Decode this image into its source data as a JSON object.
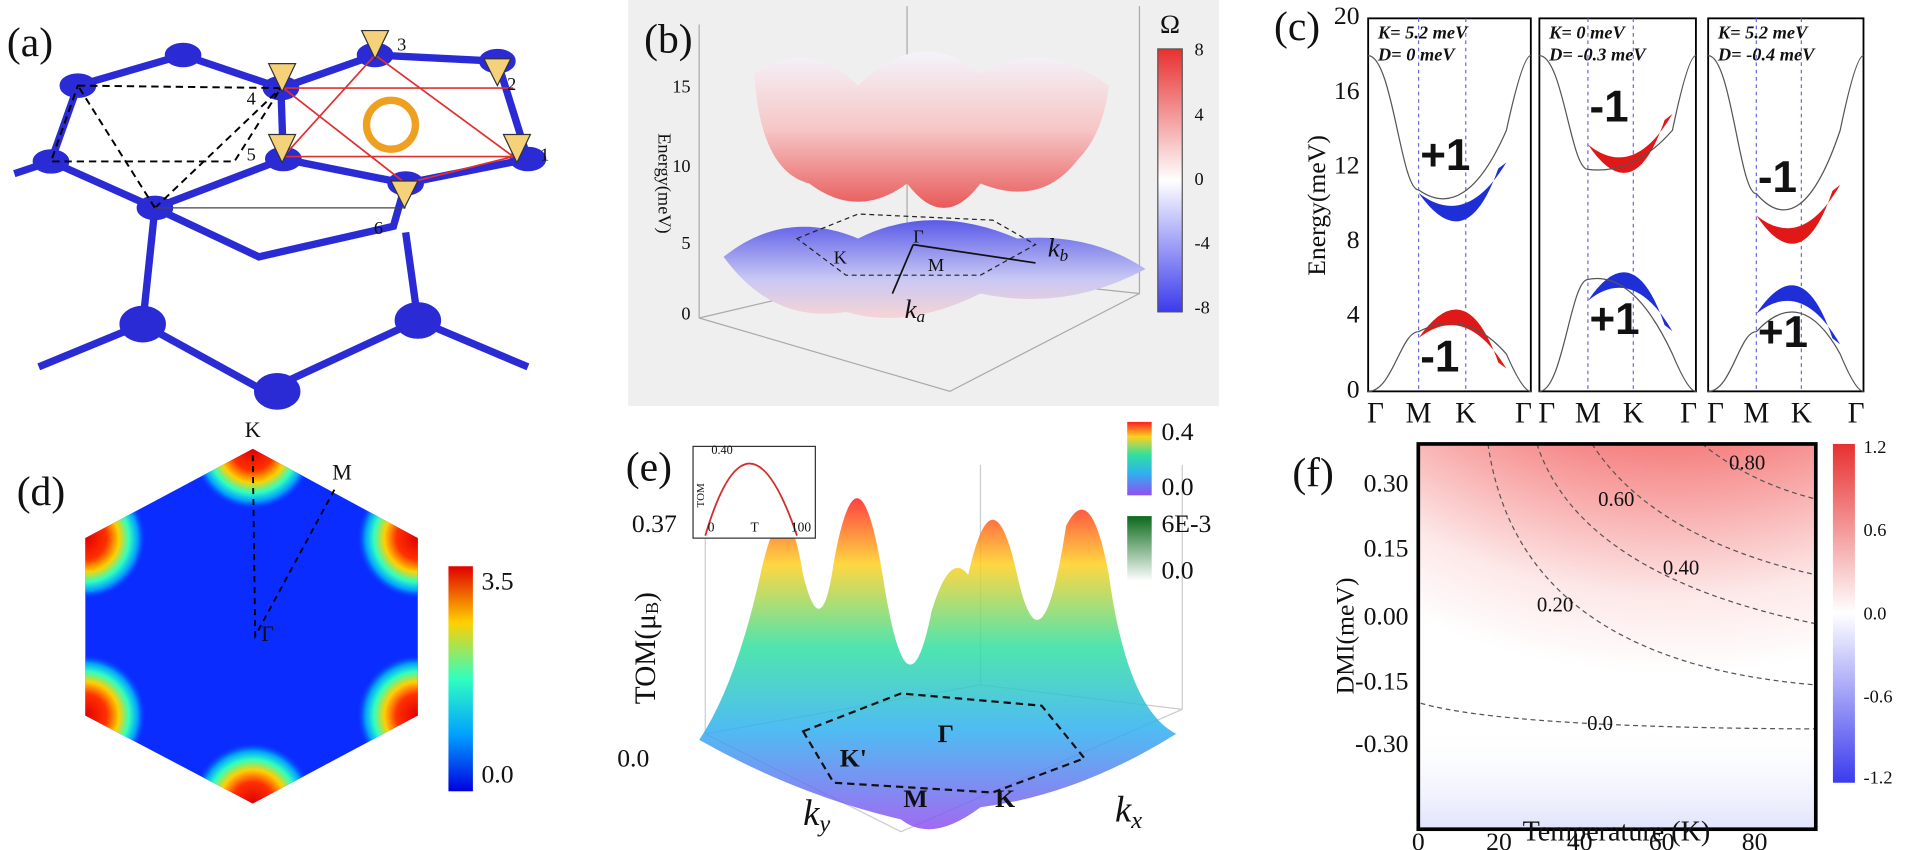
{
  "a": {
    "label": "(a)",
    "sites": [
      "1",
      "2",
      "3",
      "4",
      "5",
      "6"
    ]
  },
  "b": {
    "label": "(b)",
    "colorbar_title": "Ω",
    "colorbar_ticks": [
      "8",
      "4",
      "0",
      "-4",
      "-8"
    ],
    "z_axis_label": "Energy(meV)",
    "z_ticks": [
      "15",
      "10",
      "5",
      "0"
    ],
    "points": [
      "Γ",
      "K",
      "M"
    ],
    "axes": [
      {
        "main": "k",
        "sub": "b"
      },
      {
        "main": "k",
        "sub": "a"
      }
    ]
  },
  "c": {
    "label": "(c)",
    "y_axis_label": "Energy(meV)",
    "y_ticks": [
      "20",
      "16",
      "12",
      "8",
      "4",
      "0"
    ],
    "subpanels": [
      {
        "K": "K= 5.2 meV",
        "D": "D= 0 meV",
        "upper": "+1",
        "lower": "-1",
        "x_ticks": [
          "Γ",
          "M",
          "K",
          "Γ"
        ]
      },
      {
        "K": "K= 0 meV",
        "D": "D= -0.3 meV",
        "upper": "-1",
        "lower": "+1",
        "x_ticks": [
          "Γ",
          "M",
          "K",
          "Γ"
        ]
      },
      {
        "K": "K= 5.2 meV",
        "D": "D= -0.4 meV",
        "upper": "-1",
        "lower": "+1",
        "x_ticks": [
          "Γ",
          "M",
          "K",
          "Γ"
        ]
      }
    ]
  },
  "d": {
    "label": "(d)",
    "points": [
      "K",
      "M",
      "Γ"
    ],
    "colorbar_ticks": [
      "3.5",
      "0.0"
    ]
  },
  "e": {
    "label": "(e)",
    "z_ticks": [
      "0.37",
      "0.0"
    ],
    "z_axis_label": {
      "main": "TOM(μ",
      "sub": "B",
      "close": ")"
    },
    "inset": {
      "y_tick": "0.40",
      "y_label": "TOM",
      "x_ticks": [
        "0",
        "T",
        "100"
      ]
    },
    "colorbar_ticks": [
      "0.4",
      "0.0"
    ],
    "colorbar2_ticks": [
      "6E-3",
      "0.0"
    ],
    "points": [
      "K'",
      "Γ",
      "M",
      "K"
    ],
    "axes": [
      {
        "main": "k",
        "sub": "y"
      },
      {
        "main": "k",
        "sub": "x"
      }
    ]
  },
  "f": {
    "label": "(f)",
    "y_axis_label": "DMI(meV)",
    "y_ticks": [
      "0.30",
      "0.15",
      "0.00",
      "-0.15",
      "-0.30"
    ],
    "x_ticks": [
      "0",
      "20",
      "40",
      "60",
      "80"
    ],
    "x_axis_label": "Temperature (K)",
    "contour_labels": [
      "0.80",
      "0.60",
      "0.40",
      "0.20",
      "0.0"
    ],
    "colorbar_ticks": [
      "1.2",
      "0.6",
      "0.0",
      "-0.6",
      "-1.2"
    ]
  }
}
